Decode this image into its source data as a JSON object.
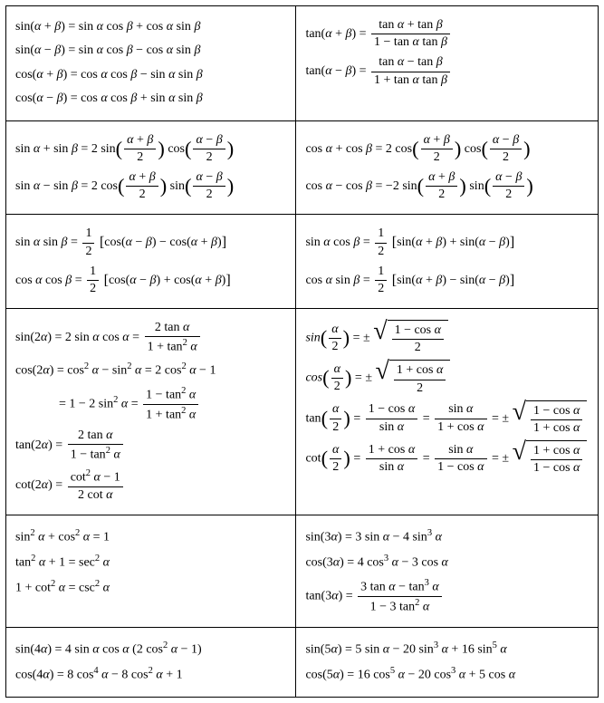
{
  "rows": [
    {
      "left": [
        "sin(<i>α</i> + <i>β</i>) = sin <i>α</i> cos <i>β</i> + cos <i>α</i> sin <i>β</i>",
        "sin(<i>α</i> − <i>β</i>) = sin <i>α</i> cos <i>β</i> − cos <i>α</i> sin <i>β</i>",
        "cos(<i>α</i> + <i>β</i>) = cos <i>α</i> cos <i>β</i> − sin <i>α</i> sin <i>β</i>",
        "cos(<i>α</i> − <i>β</i>) = cos <i>α</i> cos <i>β</i> + sin <i>α</i> sin <i>β</i>"
      ],
      "right": [
        "tan(<i>α</i> + <i>β</i>) = <span class='frac'><span class='num'>tan <i>α</i> + tan <i>β</i></span><span class='den'>1 − tan <i>α</i> tan <i>β</i></span></span>",
        "tan(<i>α</i> − <i>β</i>) = <span class='frac'><span class='num'>tan <i>α</i> − tan <i>β</i></span><span class='den'>1 + tan <i>α</i> tan <i>β</i></span></span>"
      ]
    },
    {
      "left": [
        "sin <i>α</i> + sin <i>β</i> = 2 sin<span class='paren-big'>(</span><span class='frac'><span class='num'><i>α</i> + <i>β</i></span><span class='den'>2</span></span><span class='paren-big'>)</span> cos<span class='paren-big'>(</span><span class='frac'><span class='num'><i>α</i> − <i>β</i></span><span class='den'>2</span></span><span class='paren-big'>)</span>",
        "sin <i>α</i> − sin <i>β</i> = 2 cos<span class='paren-big'>(</span><span class='frac'><span class='num'><i>α</i> + <i>β</i></span><span class='den'>2</span></span><span class='paren-big'>)</span> sin<span class='paren-big'>(</span><span class='frac'><span class='num'><i>α</i> − <i>β</i></span><span class='den'>2</span></span><span class='paren-big'>)</span>"
      ],
      "right": [
        "cos <i>α</i> + cos <i>β</i> = 2 cos<span class='paren-big'>(</span><span class='frac'><span class='num'><i>α</i> + <i>β</i></span><span class='den'>2</span></span><span class='paren-big'>)</span> cos<span class='paren-big'>(</span><span class='frac'><span class='num'><i>α</i> − <i>β</i></span><span class='den'>2</span></span><span class='paren-big'>)</span>",
        "cos <i>α</i> − cos <i>β</i> = −2 sin<span class='paren-big'>(</span><span class='frac'><span class='num'><i>α</i> + <i>β</i></span><span class='den'>2</span></span><span class='paren-big'>)</span> sin<span class='paren-big'>(</span><span class='frac'><span class='num'><i>α</i> − <i>β</i></span><span class='den'>2</span></span><span class='paren-big'>)</span>"
      ]
    },
    {
      "left": [
        "sin <i>α</i> sin <i>β</i> = <span class='frac'><span class='num'>1</span><span class='den'>2</span></span> <span class='brack-big'>[</span>cos(<i>α</i> − <i>β</i>) − cos(<i>α</i> + <i>β</i>)<span class='brack-big'>]</span>",
        "cos <i>α</i> cos <i>β</i> = <span class='frac'><span class='num'>1</span><span class='den'>2</span></span> <span class='brack-big'>[</span>cos(<i>α</i> − <i>β</i>) + cos(<i>α</i> + <i>β</i>)<span class='brack-big'>]</span>"
      ],
      "right": [
        "sin <i>α</i> cos <i>β</i> = <span class='frac'><span class='num'>1</span><span class='den'>2</span></span> <span class='brack-big'>[</span>sin(<i>α</i> + <i>β</i>) + sin(<i>α</i> − <i>β</i>)<span class='brack-big'>]</span>",
        "cos <i>α</i> sin <i>β</i> = <span class='frac'><span class='num'>1</span><span class='den'>2</span></span> <span class='brack-big'>[</span>sin(<i>α</i> + <i>β</i>) − sin(<i>α</i> − <i>β</i>)<span class='brack-big'>]</span>"
      ]
    },
    {
      "left": [
        "sin(2<i>α</i>) = 2 sin <i>α</i> cos <i>α</i> = <span class='frac'><span class='num'>2 tan <i>α</i></span><span class='den'>1 + tan<span class='sq'>2</span> <i>α</i></span></span>",
        "cos(2<i>α</i>) = cos<span class='sq'>2</span> <i>α</i> − sin<span class='sq'>2</span> <i>α</i> = 2 cos<span class='sq'>2</span> <i>α</i> − 1",
        "<span class='indent'></span>= 1 − 2 sin<span class='sq'>2</span> <i>α</i> = <span class='frac'><span class='num'>1 − tan<span class='sq'>2</span> <i>α</i></span><span class='den'>1 + tan<span class='sq'>2</span> <i>α</i></span></span>",
        "tan(2<i>α</i>) = <span class='frac'><span class='num'>2 tan <i>α</i></span><span class='den'>1 − tan<span class='sq'>2</span> <i>α</i></span></span>",
        "cot(2<i>α</i>) = <span class='frac'><span class='num'>cot<span class='sq'>2</span> <i>α</i> − 1</span><span class='den'>2 cot <i>α</i></span></span>"
      ],
      "right": [
        "<i>sin</i><span class='paren-big'>(</span><span class='frac'><span class='num'><i>α</i></span><span class='den'>2</span></span><span class='paren-big'>)</span> = ± <span class='sqrt'><span class='radic'>√</span><span class='radicand'><span class='frac'><span class='num'>1 − cos <i>α</i></span><span class='den'>2</span></span></span></span>",
        "<i>cos</i><span class='paren-big'>(</span><span class='frac'><span class='num'><i>α</i></span><span class='den'>2</span></span><span class='paren-big'>)</span> = ± <span class='sqrt'><span class='radic'>√</span><span class='radicand'><span class='frac'><span class='num'>1 + cos <i>α</i></span><span class='den'>2</span></span></span></span>",
        "tan<span class='paren-big'>(</span><span class='frac'><span class='num'><i>α</i></span><span class='den'>2</span></span><span class='paren-big'>)</span> = <span class='frac'><span class='num'>1 − cos <i>α</i></span><span class='den'>sin <i>α</i></span></span> = <span class='frac'><span class='num'>sin <i>α</i></span><span class='den'>1 + cos <i>α</i></span></span> = ± <span class='sqrt'><span class='radic'>√</span><span class='radicand'><span class='frac'><span class='num'>1 − cos <i>α</i></span><span class='den'>1 + cos <i>α</i></span></span></span></span>",
        "cot<span class='paren-big'>(</span><span class='frac'><span class='num'><i>α</i></span><span class='den'>2</span></span><span class='paren-big'>)</span> = <span class='frac'><span class='num'>1 + cos <i>α</i></span><span class='den'>sin <i>α</i></span></span> = <span class='frac'><span class='num'>sin <i>α</i></span><span class='den'>1 − cos <i>α</i></span></span> = ± <span class='sqrt'><span class='radic'>√</span><span class='radicand'><span class='frac'><span class='num'>1 + cos <i>α</i></span><span class='den'>1 − cos <i>α</i></span></span></span></span>"
      ]
    },
    {
      "left": [
        "sin<span class='sq'>2</span> <i>α</i> + cos<span class='sq'>2</span> <i>α</i> = 1",
        "tan<span class='sq'>2</span> <i>α</i> + 1 = sec<span class='sq'>2</span> <i>α</i>",
        "1 + cot<span class='sq'>2</span> <i>α</i> = csc<span class='sq'>2</span> <i>α</i>"
      ],
      "right": [
        "sin(3<i>α</i>) = 3 sin <i>α</i> − 4 sin<span class='sq'>3</span> <i>α</i>",
        "cos(3<i>α</i>) = 4 cos<span class='sq'>3</span> <i>α</i> − 3 cos <i>α</i>",
        "tan(3<i>α</i>) = <span class='frac'><span class='num'>3 tan <i>α</i> − tan<span class='sq'>3</span> <i>α</i></span><span class='den'>1 − 3 tan<span class='sq'>2</span> <i>α</i></span></span>"
      ]
    },
    {
      "left": [
        "sin(4<i>α</i>) = 4 sin <i>α</i> cos <i>α</i> (2 cos<span class='sq'>2</span> <i>α</i> − 1)",
        "cos(4<i>α</i>) = 8 cos<span class='sq'>4</span> <i>α</i> − 8 cos<span class='sq'>2</span> <i>α</i> + 1"
      ],
      "right": [
        "sin(5<i>α</i>) = 5 sin <i>α</i> − 20 sin<span class='sq'>3</span> <i>α</i> + 16 sin<span class='sq'>5</span> <i>α</i>",
        "cos(5<i>α</i>) = 16 cos<span class='sq'>5</span> <i>α</i> − 20 cos<span class='sq'>3</span> <i>α</i> + 5 cos <i>α</i>"
      ]
    }
  ]
}
